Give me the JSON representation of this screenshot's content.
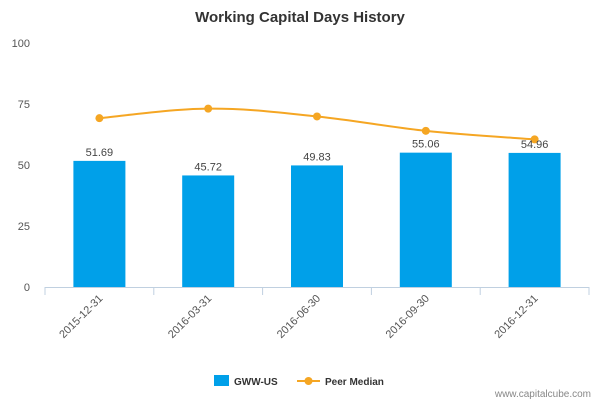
{
  "chart_data": {
    "type": "bar",
    "title": "Working Capital Days History",
    "categories": [
      "2015-12-31",
      "2016-03-31",
      "2016-06-30",
      "2016-09-30",
      "2016-12-31"
    ],
    "ylim": [
      0,
      100
    ],
    "yticks": [
      0,
      25,
      50,
      75,
      100
    ],
    "grid": false,
    "legend_position": "bottom-center",
    "series": [
      {
        "name": "GWW-US",
        "type": "bar",
        "color": "#00a0e9",
        "values": [
          51.69,
          45.72,
          49.83,
          55.06,
          54.96
        ],
        "labels": [
          "51.69",
          "45.72",
          "49.83",
          "55.06",
          "54.96"
        ]
      },
      {
        "name": "Peer Median",
        "type": "line",
        "color": "#f5a623",
        "values": [
          69.2,
          73.1,
          69.9,
          64.0,
          60.5
        ]
      }
    ]
  },
  "credit": "www.capitalcube.com"
}
